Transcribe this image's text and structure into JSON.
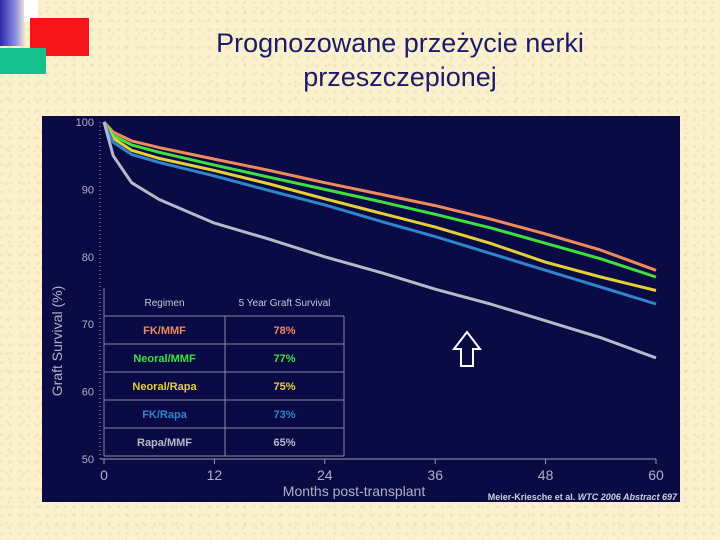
{
  "slide": {
    "title_line1": "Prognozowane przeżycie nerki",
    "title_line2": "przeszczepionej"
  },
  "colors": {
    "background": "#fbf1cf",
    "chart_background": "#0a0a44",
    "title": "#1b1b6e"
  },
  "chart_data": {
    "type": "line",
    "title": "",
    "xlabel": "Months post-transplant",
    "ylabel": "Graft Survival (%)",
    "xlim": [
      0,
      60
    ],
    "ylim": [
      50,
      100
    ],
    "xticks": [
      0,
      12,
      24,
      36,
      48,
      60
    ],
    "yticks": [
      50,
      60,
      70,
      80,
      90,
      100
    ],
    "grid": false,
    "series": [
      {
        "name": "FK/MMF",
        "color": "#f08a5a",
        "x": [
          0,
          1,
          3,
          6,
          12,
          18,
          24,
          30,
          36,
          42,
          48,
          54,
          60
        ],
        "y": [
          100,
          98.5,
          97.2,
          96.2,
          94.5,
          92.8,
          91.0,
          89.3,
          87.6,
          85.6,
          83.4,
          81.0,
          78.0
        ]
      },
      {
        "name": "Neoral/MMF",
        "color": "#3ee23e",
        "x": [
          0,
          1,
          3,
          6,
          12,
          18,
          24,
          30,
          36,
          42,
          48,
          54,
          60
        ],
        "y": [
          100,
          98.0,
          96.6,
          95.5,
          93.6,
          91.8,
          90.0,
          88.2,
          86.3,
          84.3,
          82.0,
          79.7,
          77.0
        ]
      },
      {
        "name": "Neoral/Rapa",
        "color": "#e6d035",
        "x": [
          0,
          1,
          3,
          6,
          12,
          18,
          24,
          30,
          36,
          42,
          48,
          54,
          60
        ],
        "y": [
          100,
          97.6,
          95.8,
          94.6,
          92.8,
          90.8,
          88.6,
          86.5,
          84.4,
          82.0,
          79.2,
          77.0,
          75.0
        ]
      },
      {
        "name": "FK/Rapa",
        "color": "#2f86cc",
        "x": [
          0,
          1,
          3,
          6,
          12,
          18,
          24,
          30,
          36,
          42,
          48,
          54,
          60
        ],
        "y": [
          100,
          97.0,
          95.2,
          94.0,
          92.0,
          89.8,
          87.7,
          85.3,
          83.0,
          80.5,
          78.0,
          75.5,
          73.0
        ]
      },
      {
        "name": "Rapa/MMF",
        "color": "#b8b8c8",
        "x": [
          0,
          1,
          3,
          6,
          12,
          18,
          24,
          30,
          36,
          42,
          48,
          54,
          60
        ],
        "y": [
          100,
          95.0,
          91.0,
          88.5,
          85.0,
          82.6,
          80.0,
          77.7,
          75.2,
          73.0,
          70.5,
          68.0,
          65.0
        ]
      }
    ],
    "table": {
      "headers": [
        "Regimen",
        "5 Year Graft Survival"
      ],
      "rows": [
        {
          "regimen": "FK/MMF",
          "survival": "78%",
          "color": "#f08a5a"
        },
        {
          "regimen": "Neoral/MMF",
          "survival": "77%",
          "color": "#3ee23e"
        },
        {
          "regimen": "Neoral/Rapa",
          "survival": "75%",
          "color": "#e6d035"
        },
        {
          "regimen": "FK/Rapa",
          "survival": "73%",
          "color": "#2f86cc"
        },
        {
          "regimen": "Rapa/MMF",
          "survival": "65%",
          "color": "#b8b8c8"
        }
      ]
    },
    "citation": {
      "prefix": "Meier-Kriesche et al. ",
      "emphasis": "WTC 2006 Abstract 697"
    }
  }
}
